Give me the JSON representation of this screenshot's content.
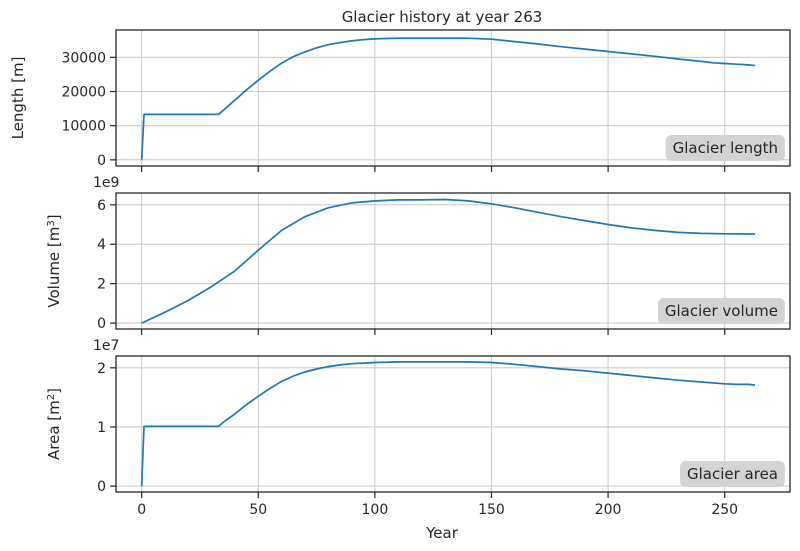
{
  "colors": {
    "line": "#1f77b4",
    "grid": "#cccccc",
    "frame": "#262626",
    "badge": "#d3d3d3"
  },
  "chart_data": [
    {
      "type": "line",
      "title": "Glacier history at year 263",
      "ylabel": "Length [m]",
      "ylabel_sup": "",
      "offset_label": "",
      "badge": "Glacier length",
      "xlim": [
        -11,
        278
      ],
      "ylim": [
        -1800,
        38000
      ],
      "xticks": [
        0,
        50,
        100,
        150,
        200,
        250
      ],
      "yticks": [
        0,
        10000,
        20000,
        30000
      ],
      "ytick_labels": [
        "0",
        "10000",
        "20000",
        "30000"
      ],
      "series": [
        {
          "x": [
            0,
            1,
            5,
            10,
            20,
            30,
            33,
            35,
            40,
            45,
            50,
            55,
            60,
            65,
            70,
            75,
            80,
            85,
            90,
            95,
            100,
            105,
            110,
            115,
            120,
            130,
            140,
            150,
            160,
            170,
            180,
            190,
            200,
            210,
            220,
            230,
            240,
            245,
            250,
            255,
            260,
            263
          ],
          "values": [
            0,
            13300,
            13300,
            13300,
            13300,
            13300,
            13300,
            14500,
            17500,
            20500,
            23300,
            25900,
            28300,
            30200,
            31600,
            32800,
            33700,
            34300,
            34800,
            35200,
            35400,
            35500,
            35600,
            35600,
            35600,
            35600,
            35600,
            35300,
            34600,
            33900,
            33100,
            32400,
            31700,
            31000,
            30300,
            29500,
            28800,
            28400,
            28200,
            28000,
            27800,
            27600
          ]
        }
      ]
    },
    {
      "type": "line",
      "title": "",
      "ylabel": "Volume [m",
      "ylabel_sup": "3",
      "offset_label": "1e9",
      "badge": "Glacier volume",
      "xlim": [
        -11,
        278
      ],
      "ylim": [
        -0.3,
        6.6
      ],
      "xticks": [
        0,
        50,
        100,
        150,
        200,
        250
      ],
      "yticks": [
        0,
        2,
        4,
        6
      ],
      "ytick_labels": [
        "0",
        "2",
        "4",
        "6"
      ],
      "series": [
        {
          "x": [
            0,
            10,
            20,
            30,
            40,
            50,
            60,
            70,
            80,
            90,
            100,
            110,
            120,
            130,
            140,
            150,
            160,
            170,
            180,
            190,
            200,
            210,
            220,
            230,
            240,
            250,
            260,
            263
          ],
          "values": [
            0,
            0.55,
            1.15,
            1.85,
            2.65,
            3.7,
            4.7,
            5.4,
            5.85,
            6.1,
            6.2,
            6.25,
            6.25,
            6.27,
            6.2,
            6.05,
            5.85,
            5.62,
            5.4,
            5.2,
            5.0,
            4.83,
            4.7,
            4.6,
            4.55,
            4.53,
            4.52,
            4.52
          ]
        }
      ]
    },
    {
      "type": "line",
      "title": "",
      "ylabel": "Area [m",
      "ylabel_sup": "2",
      "offset_label": "1e7",
      "badge": "Glacier area",
      "xlabel": "Year",
      "xlim": [
        -11,
        278
      ],
      "ylim": [
        -0.1,
        2.2
      ],
      "xticks": [
        0,
        50,
        100,
        150,
        200,
        250
      ],
      "xtick_labels": [
        "0",
        "50",
        "100",
        "150",
        "200",
        "250"
      ],
      "yticks": [
        0,
        1,
        2
      ],
      "ytick_labels": [
        "0",
        "1",
        "2"
      ],
      "series": [
        {
          "x": [
            0,
            1,
            5,
            10,
            20,
            30,
            33,
            35,
            40,
            45,
            50,
            55,
            60,
            65,
            70,
            75,
            80,
            85,
            90,
            95,
            100,
            110,
            120,
            130,
            140,
            150,
            160,
            170,
            180,
            190,
            200,
            210,
            220,
            230,
            240,
            250,
            255,
            260,
            263
          ],
          "values": [
            0,
            1.01,
            1.01,
            1.01,
            1.01,
            1.01,
            1.01,
            1.08,
            1.22,
            1.38,
            1.52,
            1.65,
            1.77,
            1.86,
            1.93,
            1.98,
            2.02,
            2.05,
            2.07,
            2.08,
            2.09,
            2.1,
            2.1,
            2.1,
            2.1,
            2.09,
            2.06,
            2.02,
            1.98,
            1.95,
            1.91,
            1.87,
            1.83,
            1.79,
            1.76,
            1.73,
            1.72,
            1.72,
            1.71
          ]
        }
      ]
    }
  ]
}
